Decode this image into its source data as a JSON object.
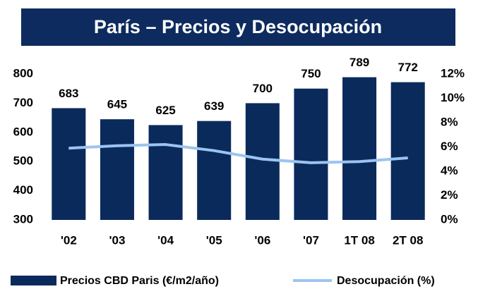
{
  "chart_data": {
    "type": "bar",
    "title": "París – Precios y Desocupación",
    "categories": [
      "'02",
      "'03",
      "'04",
      "'05",
      "'06",
      "'07",
      "1T 08",
      "2T 08"
    ],
    "series": [
      {
        "name": "Precios CBD Paris (€/m2/año)",
        "type": "bar",
        "axis": "y",
        "color": "#0b2a5c",
        "values": [
          683,
          645,
          625,
          639,
          700,
          750,
          789,
          772
        ]
      },
      {
        "name": "Desocupación (%)",
        "type": "line",
        "axis": "y2",
        "color": "#9cc4f0",
        "values": [
          5.9,
          6.1,
          6.2,
          5.7,
          5.0,
          4.7,
          4.8,
          5.1
        ]
      }
    ],
    "ylim": [
      300,
      800
    ],
    "yticks": [
      300,
      400,
      500,
      600,
      700,
      800
    ],
    "y2lim": [
      0,
      12
    ],
    "y2ticks": [
      {
        "value": 0,
        "label": "0%"
      },
      {
        "value": 2,
        "label": "2%"
      },
      {
        "value": 4,
        "label": "4%"
      },
      {
        "value": 6,
        "label": "6%"
      },
      {
        "value": 8,
        "label": "8%"
      },
      {
        "value": 10,
        "label": "10%"
      },
      {
        "value": 12,
        "label": "12%"
      }
    ],
    "grid": false,
    "legend": "bottom"
  }
}
